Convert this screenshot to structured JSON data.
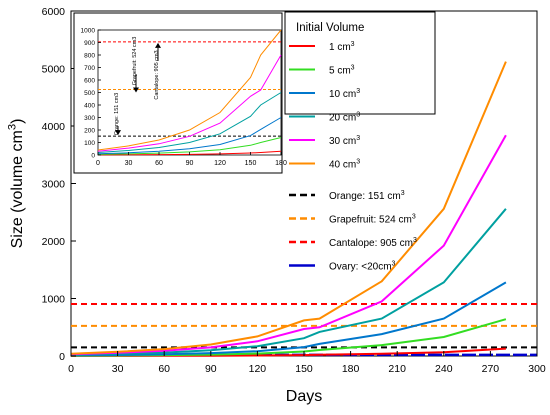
{
  "chart_data": [
    {
      "type": "line",
      "xlabel": "Days",
      "ylabel": "Size (volume cm",
      "ylabel_sup": "3",
      "ylabel_close": ")",
      "xlim": [
        0,
        300
      ],
      "ylim": [
        0,
        6000
      ],
      "xticks": [
        "0",
        "30",
        "60",
        "90",
        "120",
        "150",
        "180",
        "210",
        "240",
        "270",
        "300"
      ],
      "yticks": [
        "0",
        "1000",
        "2000",
        "3000",
        "4000",
        "5000",
        "6000"
      ],
      "x": [
        0,
        30,
        60,
        90,
        120,
        150,
        160,
        200,
        240,
        280
      ],
      "series": [
        {
          "name": "1 cm",
          "sup": "3",
          "color": "#ff0000",
          "values": [
            1,
            2,
            3,
            5,
            9,
            16,
            21,
            38,
            64,
            128
          ]
        },
        {
          "name": "5 cm",
          "sup": "3",
          "color": "#33dd22",
          "values": [
            5,
            9,
            15,
            25,
            42,
            78,
            105,
            190,
            330,
            640
          ]
        },
        {
          "name": "10 cm",
          "sup": "3",
          "color": "#0077cc",
          "values": [
            10,
            18,
            30,
            50,
            84,
            155,
            210,
            380,
            650,
            1280
          ]
        },
        {
          "name": "20 cm",
          "sup": "3",
          "color": "#00a0a0",
          "values": [
            20,
            36,
            60,
            100,
            170,
            310,
            420,
            650,
            1280,
            2560
          ]
        },
        {
          "name": "30 cm",
          "sup": "3",
          "color": "#ff00ff",
          "values": [
            30,
            55,
            90,
            150,
            255,
            470,
            500,
            950,
            1920,
            3840
          ]
        },
        {
          "name": "40 cm",
          "sup": "3",
          "color": "#ff8c00",
          "values": [
            40,
            73,
            120,
            200,
            340,
            620,
            650,
            1300,
            2560,
            5120
          ]
        }
      ],
      "reference_lines": [
        {
          "name": "Orange:  151 cm",
          "sup": "3",
          "value": 151,
          "color": "#000000"
        },
        {
          "name": "Grapefruit:  524 cm",
          "sup": "3",
          "value": 524,
          "color": "#ff8c00"
        },
        {
          "name": "Cantalope:  905 cm",
          "sup": "3",
          "value": 905,
          "color": "#ff0000"
        },
        {
          "name": "Ovary:  <20cm",
          "sup": "3",
          "value": 20,
          "color": "#0000cc"
        }
      ],
      "legend_title": "Initial  Volume",
      "legend_position": "upper-right"
    },
    {
      "type": "line",
      "inset": true,
      "xlim": [
        0,
        180
      ],
      "ylim": [
        0,
        1000
      ],
      "xticks": [
        "0",
        "30",
        "60",
        "90",
        "120",
        "150",
        "180"
      ],
      "yticks": [
        "0",
        "100",
        "200",
        "300",
        "400",
        "500",
        "600",
        "700",
        "800",
        "900",
        "1000"
      ],
      "x": [
        0,
        30,
        60,
        90,
        120,
        150,
        160,
        180
      ],
      "series": [
        {
          "name": "1 cm3",
          "color": "#ff0000",
          "values": [
            1,
            2,
            3,
            5,
            9,
            16,
            20,
            30
          ]
        },
        {
          "name": "5 cm3",
          "color": "#33dd22",
          "values": [
            5,
            9,
            15,
            25,
            42,
            78,
            100,
            140
          ]
        },
        {
          "name": "10 cm3",
          "color": "#0077cc",
          "values": [
            10,
            18,
            30,
            50,
            84,
            155,
            205,
            300
          ]
        },
        {
          "name": "20 cm3",
          "color": "#00a0a0",
          "values": [
            20,
            36,
            60,
            100,
            170,
            310,
            400,
            500
          ]
        },
        {
          "name": "30 cm3",
          "color": "#ff00ff",
          "values": [
            30,
            55,
            90,
            150,
            255,
            470,
            520,
            800
          ]
        },
        {
          "name": "40 cm3",
          "color": "#ff8c00",
          "values": [
            40,
            73,
            120,
            200,
            340,
            620,
            800,
            1000
          ]
        }
      ],
      "reference_lines": [
        {
          "value": 151,
          "color": "#000000"
        },
        {
          "value": 524,
          "color": "#ff8c00"
        },
        {
          "value": 905,
          "color": "#ff0000"
        }
      ],
      "annotations": [
        {
          "text": "Orange:  151 cm3",
          "value": 151
        },
        {
          "text": "Grapefruit:  524 cm3",
          "value": 524
        },
        {
          "text": "Cantalope:  905 cm3",
          "value": 905
        }
      ]
    }
  ]
}
